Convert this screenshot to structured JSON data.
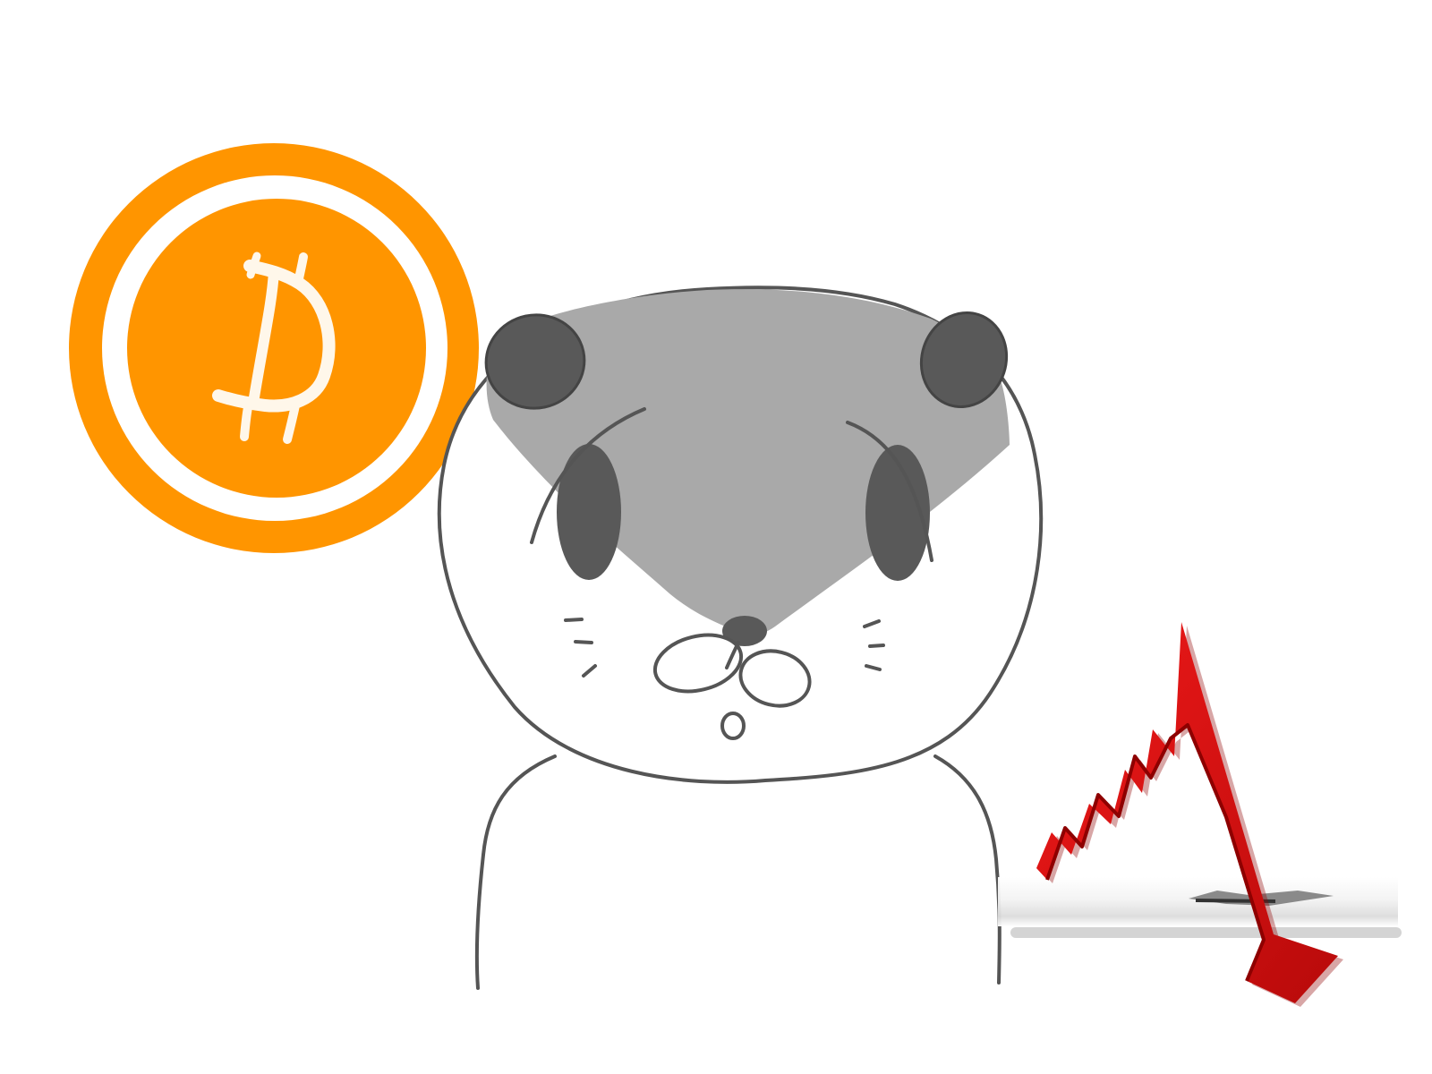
{
  "scene": {
    "description_free": true,
    "background_color": "#ffffff"
  },
  "coin": {
    "icon": "bitcoin-coin-icon",
    "symbol": "₿",
    "ring_color": "#ff9500",
    "inner_color": "#ff9500",
    "band_color": "#ffffff",
    "symbol_color": "#fff4df"
  },
  "character": {
    "icon": "otter-face-icon",
    "face_gray": "#a9a9a9",
    "ear_eye_color": "#595959",
    "outline_color": "#555555"
  },
  "crash_graphic": {
    "icon": "falling-red-arrow-icon",
    "arrow_color": "#d90f0f",
    "arrow_shadow": "#8e0000",
    "floor_color": "#e6e6e6"
  }
}
